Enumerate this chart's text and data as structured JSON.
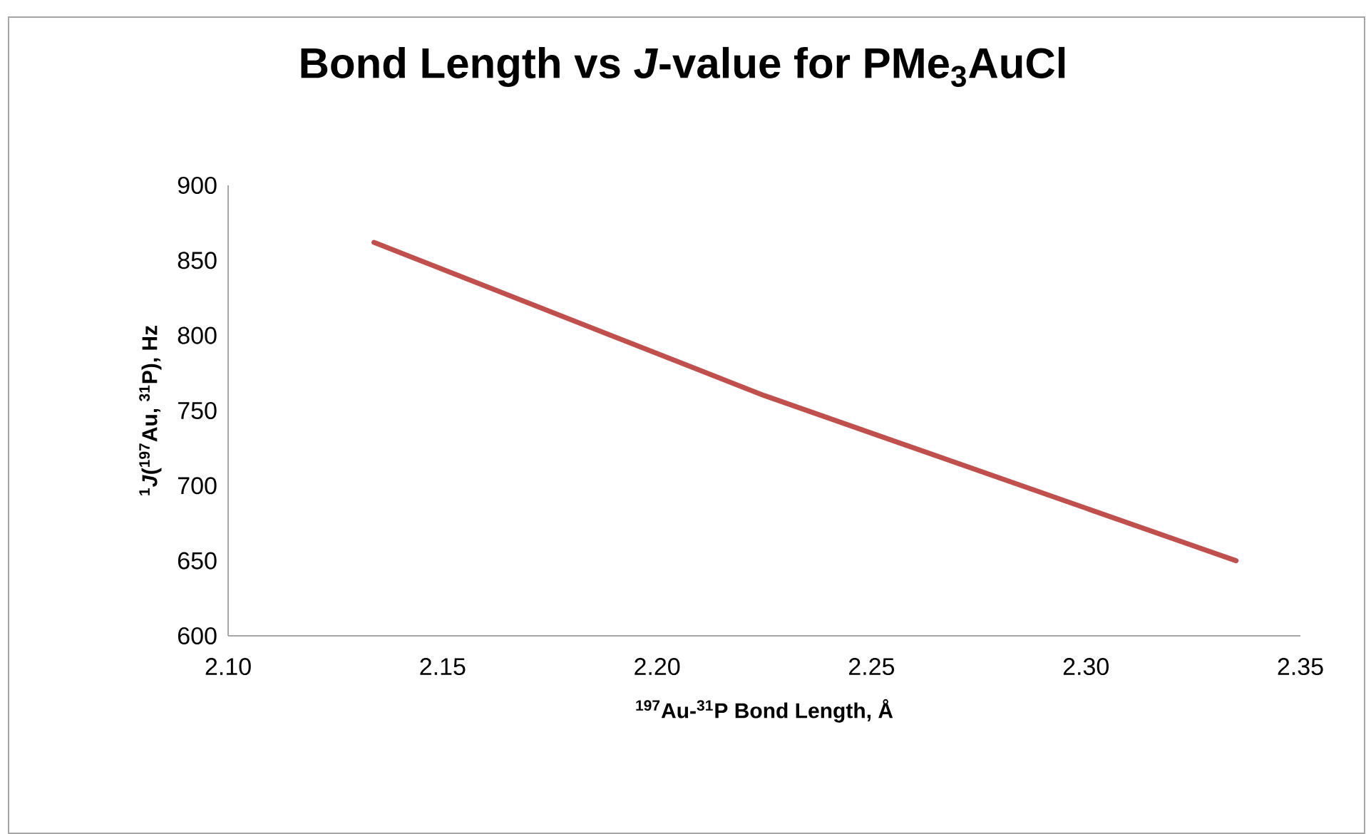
{
  "chart_data": {
    "type": "line",
    "title": "Bond Length vs *J*-value for PMe$_{3}$AuCl",
    "xlabel": "$^{197}$Au-$^{31}$P Bond Length, Å",
    "ylabel": "$^{1}$*J*($^{197}$Au, $^{31}$P), Hz",
    "x": [
      2.134,
      2.225,
      2.335
    ],
    "series": [
      {
        "color": "#c0504d",
        "values": [
          862,
          760,
          650
        ]
      }
    ],
    "xlim": [
      2.1,
      2.35
    ],
    "ylim": [
      600,
      900
    ],
    "xticks": [
      {
        "value": 2.1,
        "label": "2.10"
      },
      {
        "value": 2.15,
        "label": "2.15"
      },
      {
        "value": 2.2,
        "label": "2.20"
      },
      {
        "value": 2.25,
        "label": "2.25"
      },
      {
        "value": 2.3,
        "label": "2.30"
      },
      {
        "value": 2.35,
        "label": "2.35"
      }
    ],
    "yticks": [
      600,
      650,
      700,
      750,
      800,
      850,
      900
    ],
    "marker": "none",
    "line_style": "solid"
  }
}
